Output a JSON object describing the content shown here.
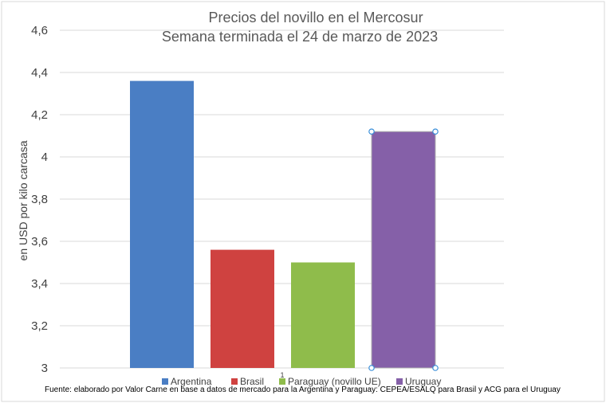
{
  "chart_data": {
    "type": "bar",
    "title": [
      "Precios del novillo en el Mercosur",
      "Semana terminada el 24 de marzo de 2023"
    ],
    "ylabel": "en USD por kilo carcasa",
    "ylim": [
      3,
      4.6
    ],
    "yticks": [
      "3",
      "3,2",
      "3,4",
      "3,6",
      "3,8",
      "4",
      "4,2",
      "4,4",
      "4,6"
    ],
    "grid": true,
    "legend_position": "bottom",
    "series": [
      {
        "name": "Argentina",
        "value": 4.36,
        "color": "#4a7ec4"
      },
      {
        "name": "Brasil",
        "value": 3.56,
        "color": "#cf4240"
      },
      {
        "name": "Paraguay (novillo UE)",
        "value": 3.5,
        "color": "#8fbc4b"
      },
      {
        "name": "Uruguay",
        "value": 4.12,
        "color": "#8560a8"
      }
    ],
    "source": "Fuente: elaborado por Valor Carne en base a datos de mercado para la Argentina y Paraguay: CEPEA/ESALQ para Brasil y ACG para el Uruguay",
    "page_marker": "1"
  }
}
